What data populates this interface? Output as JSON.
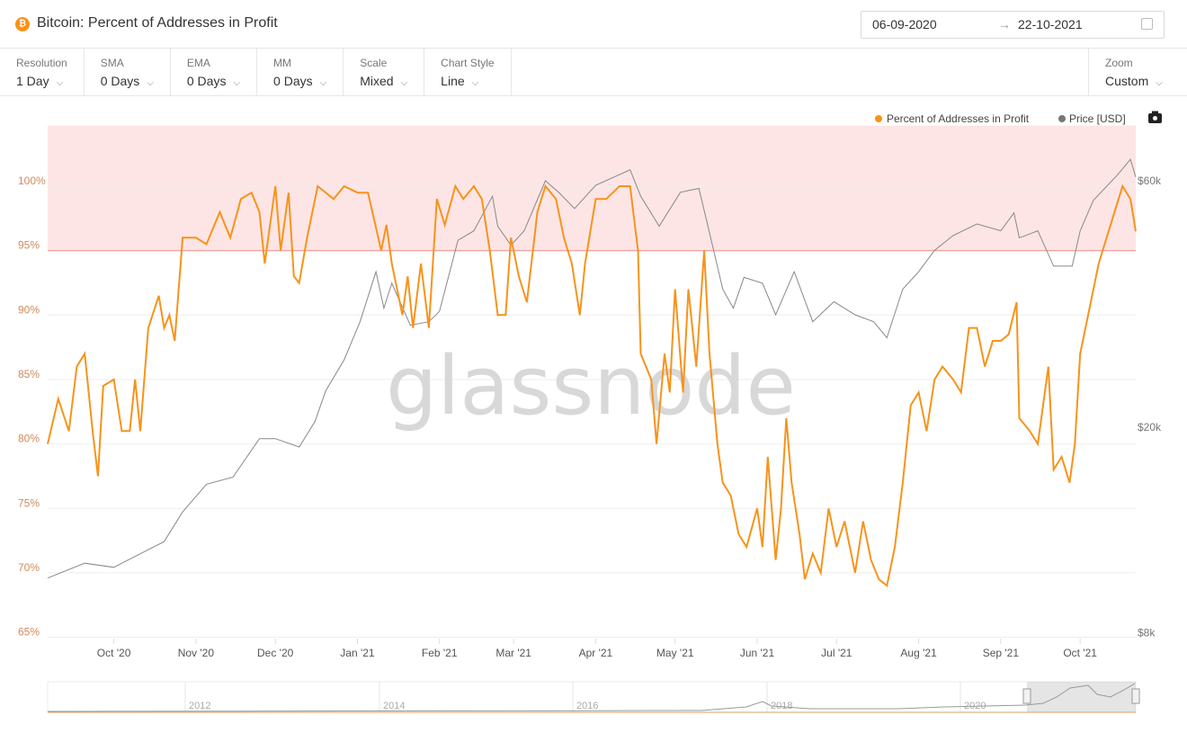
{
  "header": {
    "coin_icon": "bitcoin-icon",
    "title": "Bitcoin: Percent of Addresses in Profit",
    "date_from": "06-09-2020",
    "date_arrow": "→",
    "date_to": "22-10-2021",
    "calendar_icon": "calendar-icon"
  },
  "toolbar": [
    {
      "label": "Resolution",
      "value": "1 Day"
    },
    {
      "label": "SMA",
      "value": "0 Days"
    },
    {
      "label": "EMA",
      "value": "0 Days"
    },
    {
      "label": "MM",
      "value": "0 Days"
    },
    {
      "label": "Scale",
      "value": "Mixed"
    },
    {
      "label": "Chart Style",
      "value": "Line"
    }
  ],
  "zoom": {
    "label": "Zoom",
    "value": "Custom"
  },
  "chevron": "⌵",
  "watermark": "glassnode",
  "colors": {
    "percent": "#f7931a",
    "price": "#888888",
    "band": "#fde5e5",
    "threshold": "#f0a0a0"
  },
  "chart_data": {
    "type": "line",
    "title": "Bitcoin: Percent of Addresses in Profit",
    "x_range": [
      "2020-09-06",
      "2021-10-22"
    ],
    "legend": [
      "Percent of Addresses in Profit",
      "Price [USD]"
    ],
    "legend_position": "top-right",
    "left_axis": {
      "ticks": [
        65,
        70,
        75,
        80,
        85,
        90,
        95,
        100
      ],
      "labels": [
        "65%",
        "70%",
        "75%",
        "80%",
        "85%",
        "90%",
        "95%",
        "100%"
      ],
      "range": [
        65,
        104.7
      ]
    },
    "right_axis": {
      "scale": "log",
      "ticks": [
        8000,
        20000,
        60000
      ],
      "labels": [
        "$8k",
        "$20k",
        "$60k"
      ]
    },
    "x_ticks": [
      [
        "2020-10-01",
        "Oct '20"
      ],
      [
        "2020-11-01",
        "Nov '20"
      ],
      [
        "2020-12-01",
        "Dec '20"
      ],
      [
        "2021-01-01",
        "Jan '21"
      ],
      [
        "2021-02-01",
        "Feb '21"
      ],
      [
        "2021-03-01",
        "Mar '21"
      ],
      [
        "2021-04-01",
        "Apr '21"
      ],
      [
        "2021-05-01",
        "May '21"
      ],
      [
        "2021-06-01",
        "Jun '21"
      ],
      [
        "2021-07-01",
        "Jul '21"
      ],
      [
        "2021-08-01",
        "Aug '21"
      ],
      [
        "2021-09-01",
        "Sep '21"
      ],
      [
        "2021-10-01",
        "Oct '21"
      ]
    ],
    "band": {
      "from": 95,
      "to": 104.7
    },
    "navigator_labels": [
      "2012",
      "2014",
      "2016",
      "2018",
      "2020"
    ],
    "series": [
      {
        "name": "Percent of Addresses in Profit",
        "points": [
          [
            "2020-09-06",
            80
          ],
          [
            "2020-09-10",
            83.5
          ],
          [
            "2020-09-14",
            81
          ],
          [
            "2020-09-17",
            86
          ],
          [
            "2020-09-20",
            87
          ],
          [
            "2020-09-23",
            81
          ],
          [
            "2020-09-25",
            77.5
          ],
          [
            "2020-09-27",
            84.5
          ],
          [
            "2020-10-01",
            85
          ],
          [
            "2020-10-04",
            81
          ],
          [
            "2020-10-07",
            81
          ],
          [
            "2020-10-09",
            85
          ],
          [
            "2020-10-11",
            81
          ],
          [
            "2020-10-14",
            89
          ],
          [
            "2020-10-18",
            91.5
          ],
          [
            "2020-10-20",
            89
          ],
          [
            "2020-10-22",
            90
          ],
          [
            "2020-10-24",
            88
          ],
          [
            "2020-10-27",
            96
          ],
          [
            "2020-11-01",
            96
          ],
          [
            "2020-11-05",
            95.5
          ],
          [
            "2020-11-10",
            98
          ],
          [
            "2020-11-14",
            96
          ],
          [
            "2020-11-18",
            99
          ],
          [
            "2020-11-22",
            99.5
          ],
          [
            "2020-11-25",
            98
          ],
          [
            "2020-11-27",
            94
          ],
          [
            "2020-12-01",
            100
          ],
          [
            "2020-12-03",
            95
          ],
          [
            "2020-12-06",
            99.5
          ],
          [
            "2020-12-08",
            93
          ],
          [
            "2020-12-10",
            92.5
          ],
          [
            "2020-12-13",
            96
          ],
          [
            "2020-12-17",
            100
          ],
          [
            "2020-12-23",
            99
          ],
          [
            "2020-12-27",
            100
          ],
          [
            "2021-01-01",
            99.5
          ],
          [
            "2021-01-05",
            99.5
          ],
          [
            "2021-01-10",
            95
          ],
          [
            "2021-01-12",
            97
          ],
          [
            "2021-01-14",
            94
          ],
          [
            "2021-01-18",
            90
          ],
          [
            "2021-01-20",
            93
          ],
          [
            "2021-01-22",
            89
          ],
          [
            "2021-01-25",
            94
          ],
          [
            "2021-01-28",
            89
          ],
          [
            "2021-01-31",
            99
          ],
          [
            "2021-02-03",
            97
          ],
          [
            "2021-02-07",
            100
          ],
          [
            "2021-02-10",
            99
          ],
          [
            "2021-02-14",
            100
          ],
          [
            "2021-02-17",
            99
          ],
          [
            "2021-02-20",
            95
          ],
          [
            "2021-02-23",
            90
          ],
          [
            "2021-02-26",
            90
          ],
          [
            "2021-02-28",
            96
          ],
          [
            "2021-03-03",
            93
          ],
          [
            "2021-03-06",
            91
          ],
          [
            "2021-03-10",
            98
          ],
          [
            "2021-03-13",
            100
          ],
          [
            "2021-03-17",
            99
          ],
          [
            "2021-03-20",
            96
          ],
          [
            "2021-03-23",
            94
          ],
          [
            "2021-03-26",
            90
          ],
          [
            "2021-03-28",
            94
          ],
          [
            "2021-04-01",
            99
          ],
          [
            "2021-04-05",
            99
          ],
          [
            "2021-04-10",
            100
          ],
          [
            "2021-04-14",
            100
          ],
          [
            "2021-04-17",
            95
          ],
          [
            "2021-04-18",
            87
          ],
          [
            "2021-04-22",
            85
          ],
          [
            "2021-04-24",
            80
          ],
          [
            "2021-04-27",
            87
          ],
          [
            "2021-04-29",
            84
          ],
          [
            "2021-05-01",
            92
          ],
          [
            "2021-05-04",
            84
          ],
          [
            "2021-05-06",
            92
          ],
          [
            "2021-05-09",
            86
          ],
          [
            "2021-05-12",
            95
          ],
          [
            "2021-05-14",
            87
          ],
          [
            "2021-05-17",
            80
          ],
          [
            "2021-05-19",
            77
          ],
          [
            "2021-05-22",
            76
          ],
          [
            "2021-05-25",
            73
          ],
          [
            "2021-05-28",
            72
          ],
          [
            "2021-06-01",
            75
          ],
          [
            "2021-06-03",
            72
          ],
          [
            "2021-06-05",
            79
          ],
          [
            "2021-06-08",
            71
          ],
          [
            "2021-06-10",
            75
          ],
          [
            "2021-06-12",
            82
          ],
          [
            "2021-06-14",
            77
          ],
          [
            "2021-06-17",
            73
          ],
          [
            "2021-06-19",
            69.5
          ],
          [
            "2021-06-22",
            71.5
          ],
          [
            "2021-06-25",
            70
          ],
          [
            "2021-06-28",
            75
          ],
          [
            "2021-07-01",
            72
          ],
          [
            "2021-07-04",
            74
          ],
          [
            "2021-07-08",
            70
          ],
          [
            "2021-07-11",
            74
          ],
          [
            "2021-07-14",
            71
          ],
          [
            "2021-07-17",
            69.5
          ],
          [
            "2021-07-20",
            69
          ],
          [
            "2021-07-23",
            72
          ],
          [
            "2021-07-26",
            77
          ],
          [
            "2021-07-29",
            83
          ],
          [
            "2021-08-01",
            84
          ],
          [
            "2021-08-04",
            81
          ],
          [
            "2021-08-07",
            85
          ],
          [
            "2021-08-10",
            86
          ],
          [
            "2021-08-14",
            85
          ],
          [
            "2021-08-17",
            84
          ],
          [
            "2021-08-20",
            89
          ],
          [
            "2021-08-23",
            89
          ],
          [
            "2021-08-26",
            86
          ],
          [
            "2021-08-29",
            88
          ],
          [
            "2021-09-01",
            88
          ],
          [
            "2021-09-04",
            88.5
          ],
          [
            "2021-09-07",
            91
          ],
          [
            "2021-09-08",
            82
          ],
          [
            "2021-09-12",
            81
          ],
          [
            "2021-09-15",
            80
          ],
          [
            "2021-09-19",
            86
          ],
          [
            "2021-09-21",
            78
          ],
          [
            "2021-09-24",
            79
          ],
          [
            "2021-09-27",
            77
          ],
          [
            "2021-09-29",
            80
          ],
          [
            "2021-10-01",
            87
          ],
          [
            "2021-10-05",
            91
          ],
          [
            "2021-10-08",
            94
          ],
          [
            "2021-10-11",
            96
          ],
          [
            "2021-10-14",
            98
          ],
          [
            "2021-10-17",
            100
          ],
          [
            "2021-10-20",
            99
          ],
          [
            "2021-10-22",
            96.5
          ]
        ]
      },
      {
        "name": "Price [USD]",
        "points": [
          [
            "2020-09-06",
            10200
          ],
          [
            "2020-09-20",
            10900
          ],
          [
            "2020-10-01",
            10700
          ],
          [
            "2020-10-10",
            11300
          ],
          [
            "2020-10-20",
            12000
          ],
          [
            "2020-10-27",
            13700
          ],
          [
            "2020-11-05",
            15500
          ],
          [
            "2020-11-15",
            16000
          ],
          [
            "2020-11-25",
            19000
          ],
          [
            "2020-12-01",
            19000
          ],
          [
            "2020-12-10",
            18300
          ],
          [
            "2020-12-16",
            20500
          ],
          [
            "2020-12-20",
            23500
          ],
          [
            "2020-12-27",
            27000
          ],
          [
            "2021-01-02",
            32000
          ],
          [
            "2021-01-08",
            40000
          ],
          [
            "2021-01-11",
            34000
          ],
          [
            "2021-01-14",
            38000
          ],
          [
            "2021-01-21",
            31500
          ],
          [
            "2021-01-28",
            32000
          ],
          [
            "2021-02-01",
            33500
          ],
          [
            "2021-02-08",
            46000
          ],
          [
            "2021-02-14",
            48000
          ],
          [
            "2021-02-21",
            56000
          ],
          [
            "2021-02-23",
            49000
          ],
          [
            "2021-02-28",
            45000
          ],
          [
            "2021-03-05",
            48000
          ],
          [
            "2021-03-13",
            60000
          ],
          [
            "2021-03-18",
            57000
          ],
          [
            "2021-03-24",
            53000
          ],
          [
            "2021-04-01",
            58800
          ],
          [
            "2021-04-14",
            63000
          ],
          [
            "2021-04-18",
            56000
          ],
          [
            "2021-04-25",
            49000
          ],
          [
            "2021-05-03",
            57000
          ],
          [
            "2021-05-10",
            58000
          ],
          [
            "2021-05-13",
            50000
          ],
          [
            "2021-05-19",
            37000
          ],
          [
            "2021-05-23",
            34000
          ],
          [
            "2021-05-27",
            39000
          ],
          [
            "2021-06-03",
            38000
          ],
          [
            "2021-06-08",
            33000
          ],
          [
            "2021-06-15",
            40000
          ],
          [
            "2021-06-22",
            32000
          ],
          [
            "2021-06-30",
            35000
          ],
          [
            "2021-07-08",
            33000
          ],
          [
            "2021-07-15",
            32000
          ],
          [
            "2021-07-20",
            29800
          ],
          [
            "2021-07-26",
            37000
          ],
          [
            "2021-08-01",
            40000
          ],
          [
            "2021-08-07",
            44000
          ],
          [
            "2021-08-14",
            47000
          ],
          [
            "2021-08-23",
            49500
          ],
          [
            "2021-09-01",
            48000
          ],
          [
            "2021-09-06",
            52000
          ],
          [
            "2021-09-08",
            46500
          ],
          [
            "2021-09-15",
            48000
          ],
          [
            "2021-09-21",
            41000
          ],
          [
            "2021-09-28",
            41000
          ],
          [
            "2021-10-01",
            48000
          ],
          [
            "2021-10-06",
            55000
          ],
          [
            "2021-10-15",
            61500
          ],
          [
            "2021-10-20",
            66000
          ],
          [
            "2021-10-22",
            61000
          ]
        ]
      }
    ]
  }
}
